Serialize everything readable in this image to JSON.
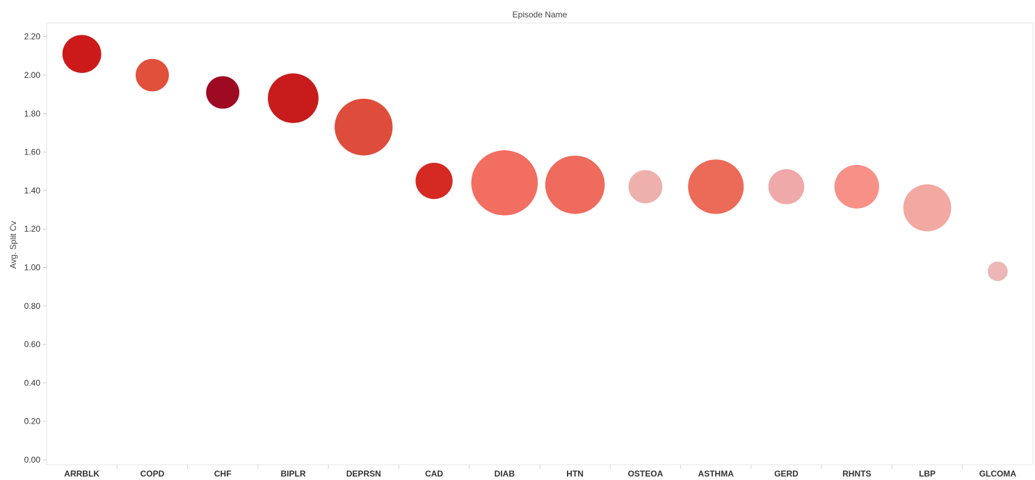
{
  "chart_data": {
    "type": "scatter",
    "title": "",
    "column_header": "Episode Name",
    "ylabel": "Avg. Split Cv",
    "xlabel": "",
    "ylim": [
      0,
      2.3
    ],
    "yticks": [
      "0.00",
      "0.20",
      "0.40",
      "0.60",
      "0.80",
      "1.00",
      "1.20",
      "1.40",
      "1.60",
      "1.80",
      "2.00",
      "2.20"
    ],
    "grid": false,
    "legend": "none",
    "categories": [
      "ARRBLK",
      "COPD",
      "CHF",
      "BIPLR",
      "DEPRSN",
      "CAD",
      "DIAB",
      "HTN",
      "OSTEOA",
      "ASTHMA",
      "GERD",
      "RHNTS",
      "LBP",
      "GLCOMA"
    ],
    "values": [
      2.11,
      2.0,
      1.91,
      1.88,
      1.73,
      1.45,
      1.44,
      1.43,
      1.42,
      1.42,
      1.42,
      1.42,
      1.31,
      0.98
    ],
    "relative_size": [
      0.34,
      0.25,
      0.25,
      0.58,
      0.76,
      0.31,
      1.0,
      0.8,
      0.26,
      0.7,
      0.29,
      0.45,
      0.52,
      0.09
    ],
    "colors": [
      "#cc1a1a",
      "#e0503b",
      "#9e0a22",
      "#c81b1b",
      "#de4d3b",
      "#d42a22",
      "#f26e61",
      "#ee6b5d",
      "#eeb0ad",
      "#ec6a58",
      "#eea9a8",
      "#f79087",
      "#f2a9a1",
      "#ecb7b6"
    ]
  }
}
